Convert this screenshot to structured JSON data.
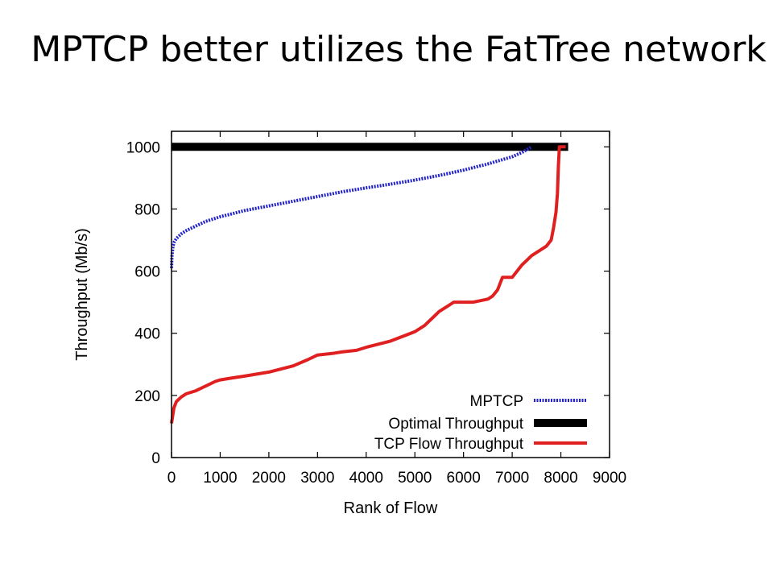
{
  "slide": {
    "title": "MPTCP better utilizes the FatTree network"
  },
  "chart_data": {
    "type": "line",
    "xlabel": "Rank of Flow",
    "ylabel": "Throughput (Mb/s)",
    "xlim": [
      0,
      9000
    ],
    "ylim": [
      0,
      1050
    ],
    "xticks": [
      0,
      1000,
      2000,
      3000,
      4000,
      5000,
      6000,
      7000,
      8000,
      9000
    ],
    "yticks": [
      0,
      200,
      400,
      600,
      800,
      1000
    ],
    "grid": false,
    "legend_position": "bottom-right",
    "series": [
      {
        "name": "MPTCP",
        "color": "#2222cc",
        "style": "dotted",
        "x": [
          0,
          10,
          30,
          60,
          100,
          200,
          300,
          500,
          700,
          1000,
          1500,
          2000,
          2500,
          3000,
          3500,
          4000,
          4500,
          5000,
          5500,
          6000,
          6500,
          7000,
          7200,
          7400
        ],
        "y": [
          610,
          650,
          680,
          695,
          705,
          720,
          730,
          745,
          760,
          775,
          795,
          810,
          825,
          840,
          855,
          868,
          880,
          893,
          908,
          925,
          945,
          968,
          982,
          1000
        ]
      },
      {
        "name": "Optimal Throughput",
        "color": "#000000",
        "style": "solid-thick",
        "x": [
          0,
          8150
        ],
        "y": [
          1000,
          1000
        ]
      },
      {
        "name": "TCP Flow Throughput",
        "color": "#e02020",
        "style": "solid",
        "x": [
          0,
          20,
          50,
          100,
          200,
          300,
          500,
          700,
          900,
          1000,
          1200,
          1500,
          2000,
          2500,
          2800,
          3000,
          3300,
          3500,
          3800,
          4000,
          4500,
          5000,
          5200,
          5400,
          5500,
          5700,
          5800,
          6000,
          6200,
          6500,
          6600,
          6700,
          6800,
          7000,
          7200,
          7400,
          7600,
          7700,
          7800,
          7850,
          7900,
          7930,
          7950,
          7970,
          8000,
          8100
        ],
        "y": [
          110,
          130,
          160,
          180,
          195,
          205,
          215,
          230,
          245,
          250,
          255,
          262,
          275,
          295,
          315,
          330,
          335,
          340,
          345,
          355,
          375,
          405,
          425,
          455,
          470,
          490,
          500,
          500,
          500,
          510,
          520,
          540,
          580,
          580,
          620,
          650,
          670,
          680,
          700,
          740,
          790,
          850,
          940,
          1000,
          1000,
          1000
        ]
      }
    ]
  }
}
